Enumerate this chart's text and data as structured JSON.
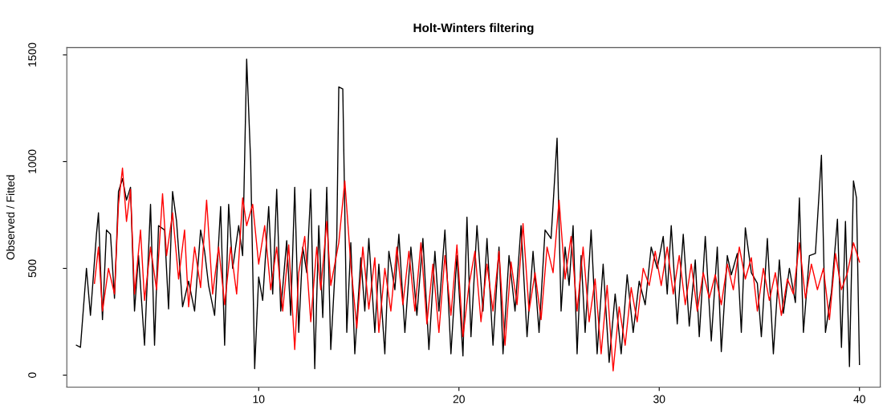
{
  "chart_data": {
    "type": "line",
    "title": "Holt-Winters filtering",
    "ylabel": "Observed / Fitted",
    "xlim": [
      0.42,
      41.04
    ],
    "ylim": [
      -56,
      1534
    ],
    "xticks": [
      10,
      20,
      30,
      40
    ],
    "yticks": [
      0,
      500,
      1000,
      1500
    ],
    "grid": false,
    "series": [
      {
        "color": "#000000",
        "x": [
          0.9,
          1.1,
          1.4,
          1.6,
          1.9,
          2.0,
          2.2,
          2.4,
          2.6,
          2.8,
          3.0,
          3.2,
          3.4,
          3.6,
          3.8,
          4.0,
          4.3,
          4.6,
          4.8,
          5.0,
          5.3,
          5.5,
          5.7,
          5.9,
          6.2,
          6.5,
          6.8,
          7.1,
          7.3,
          7.5,
          7.8,
          8.1,
          8.3,
          8.5,
          8.7,
          9.0,
          9.2,
          9.4,
          9.6,
          9.8,
          10.0,
          10.2,
          10.5,
          10.7,
          10.9,
          11.1,
          11.4,
          11.6,
          11.8,
          12.0,
          12.2,
          12.4,
          12.6,
          12.8,
          13.0,
          13.2,
          13.4,
          13.6,
          13.9,
          14.0,
          14.2,
          14.4,
          14.6,
          14.8,
          15.1,
          15.3,
          15.5,
          15.8,
          16.0,
          16.3,
          16.5,
          16.8,
          17.0,
          17.3,
          17.6,
          17.9,
          18.2,
          18.5,
          18.8,
          19.0,
          19.3,
          19.6,
          19.9,
          20.2,
          20.4,
          20.6,
          20.9,
          21.2,
          21.4,
          21.7,
          22.0,
          22.2,
          22.5,
          22.8,
          23.1,
          23.4,
          23.7,
          24.0,
          24.3,
          24.6,
          24.9,
          25.1,
          25.3,
          25.5,
          25.7,
          25.9,
          26.1,
          26.3,
          26.6,
          26.9,
          27.2,
          27.5,
          27.8,
          28.1,
          28.4,
          28.7,
          29.0,
          29.3,
          29.6,
          29.9,
          30.2,
          30.4,
          30.6,
          30.9,
          31.2,
          31.5,
          31.8,
          32.0,
          32.3,
          32.6,
          32.9,
          33.1,
          33.4,
          33.6,
          33.9,
          34.1,
          34.3,
          34.6,
          34.9,
          35.1,
          35.4,
          35.7,
          36.0,
          36.2,
          36.5,
          36.8,
          37.0,
          37.2,
          37.5,
          37.8,
          38.1,
          38.3,
          38.6,
          38.9,
          39.1,
          39.3,
          39.5,
          39.7,
          39.85,
          40.0
        ],
        "values": [
          140,
          130,
          500,
          280,
          660,
          760,
          260,
          680,
          660,
          360,
          860,
          920,
          820,
          880,
          300,
          560,
          140,
          800,
          140,
          700,
          680,
          310,
          860,
          720,
          320,
          440,
          300,
          680,
          580,
          420,
          280,
          790,
          140,
          800,
          500,
          700,
          560,
          1480,
          1000,
          30,
          460,
          350,
          790,
          380,
          870,
          300,
          630,
          280,
          880,
          200,
          600,
          480,
          870,
          30,
          700,
          270,
          880,
          120,
          640,
          1350,
          1340,
          200,
          620,
          100,
          550,
          300,
          640,
          200,
          520,
          100,
          580,
          400,
          660,
          200,
          600,
          280,
          640,
          120,
          580,
          300,
          680,
          100,
          560,
          90,
          740,
          180,
          700,
          300,
          640,
          140,
          600,
          100,
          560,
          300,
          700,
          180,
          580,
          200,
          680,
          640,
          1110,
          300,
          600,
          420,
          700,
          100,
          560,
          200,
          680,
          100,
          520,
          60,
          380,
          100,
          470,
          200,
          440,
          330,
          600,
          500,
          650,
          380,
          700,
          240,
          660,
          230,
          540,
          180,
          650,
          160,
          600,
          110,
          560,
          470,
          570,
          200,
          690,
          480,
          430,
          180,
          640,
          100,
          540,
          290,
          500,
          340,
          830,
          200,
          560,
          570,
          1030,
          200,
          390,
          730,
          130,
          720,
          40,
          910,
          830,
          50
        ]
      },
      {
        "color": "#ff0000",
        "x": [
          1.8,
          2.0,
          2.2,
          2.5,
          2.8,
          3.0,
          3.2,
          3.4,
          3.6,
          3.8,
          4.1,
          4.3,
          4.6,
          4.9,
          5.2,
          5.4,
          5.7,
          6.0,
          6.3,
          6.5,
          6.8,
          7.1,
          7.4,
          7.7,
          8.0,
          8.3,
          8.6,
          8.9,
          9.2,
          9.4,
          9.7,
          10.0,
          10.3,
          10.6,
          10.9,
          11.2,
          11.5,
          11.8,
          12.0,
          12.3,
          12.6,
          12.9,
          13.1,
          13.4,
          13.6,
          14.0,
          14.3,
          14.6,
          14.9,
          15.2,
          15.5,
          15.8,
          16.0,
          16.3,
          16.6,
          16.9,
          17.2,
          17.5,
          17.8,
          18.1,
          18.4,
          18.7,
          19.0,
          19.3,
          19.6,
          19.9,
          20.2,
          20.5,
          20.8,
          21.1,
          21.4,
          21.7,
          22.0,
          22.3,
          22.6,
          22.9,
          23.2,
          23.5,
          23.8,
          24.1,
          24.4,
          24.7,
          25.0,
          25.3,
          25.6,
          25.9,
          26.2,
          26.5,
          26.8,
          27.1,
          27.4,
          27.7,
          28.0,
          28.3,
          28.6,
          28.9,
          29.2,
          29.5,
          29.8,
          30.1,
          30.4,
          30.7,
          31.0,
          31.3,
          31.6,
          31.9,
          32.2,
          32.5,
          32.8,
          33.1,
          33.4,
          33.7,
          34.0,
          34.3,
          34.6,
          34.9,
          35.2,
          35.5,
          35.8,
          36.1,
          36.4,
          36.7,
          37.0,
          37.3,
          37.6,
          37.9,
          38.2,
          38.5,
          38.8,
          39.1,
          39.4,
          39.7,
          40.0
        ],
        "values": [
          430,
          600,
          300,
          500,
          380,
          800,
          970,
          720,
          870,
          380,
          680,
          350,
          600,
          400,
          850,
          560,
          760,
          450,
          680,
          320,
          600,
          410,
          820,
          380,
          600,
          330,
          600,
          380,
          830,
          700,
          800,
          520,
          700,
          400,
          600,
          300,
          610,
          120,
          480,
          650,
          250,
          600,
          400,
          720,
          420,
          620,
          910,
          520,
          220,
          600,
          310,
          550,
          200,
          500,
          300,
          600,
          330,
          580,
          300,
          620,
          240,
          520,
          200,
          560,
          280,
          610,
          180,
          420,
          580,
          250,
          520,
          300,
          580,
          140,
          530,
          330,
          710,
          300,
          480,
          260,
          600,
          480,
          820,
          450,
          650,
          300,
          600,
          250,
          450,
          100,
          420,
          20,
          320,
          140,
          410,
          250,
          500,
          420,
          580,
          420,
          600,
          380,
          560,
          330,
          520,
          300,
          480,
          360,
          470,
          330,
          520,
          400,
          600,
          450,
          550,
          300,
          500,
          350,
          480,
          280,
          450,
          380,
          620,
          360,
          520,
          400,
          500,
          260,
          570,
          400,
          480,
          620,
          530
        ]
      }
    ]
  }
}
